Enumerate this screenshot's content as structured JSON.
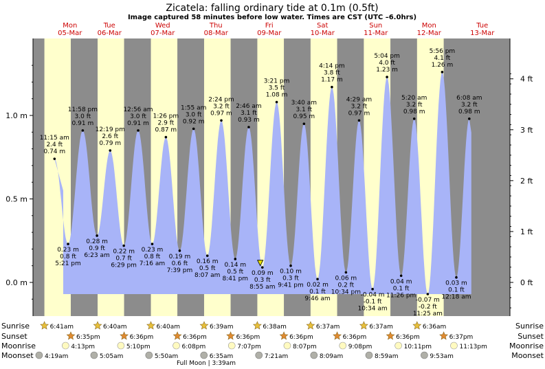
{
  "title": "Zicatela: falling  ordinary tide at 0.1m (0.5ft)",
  "subtitle": "Image captured 58 minutes before low water. Times are CST (UTC –6.0hrs)",
  "colors": {
    "night": "#8c8c8c",
    "day": "#ffffcc",
    "tide_fill": "#a8b4f8",
    "day_label": "#cc0000",
    "sun_star": "#e8c03a",
    "sunset_star": "#e08a30",
    "moonrise": "#fffac0",
    "moonset": "#b0b0a8"
  },
  "days": [
    {
      "dow": "Mon",
      "date": "05-Mar"
    },
    {
      "dow": "Tue",
      "date": "06-Mar"
    },
    {
      "dow": "Wed",
      "date": "07-Mar"
    },
    {
      "dow": "Thu",
      "date": "08-Mar"
    },
    {
      "dow": "Fri",
      "date": "09-Mar"
    },
    {
      "dow": "Sat",
      "date": "10-Mar"
    },
    {
      "dow": "Sun",
      "date": "11-Mar"
    },
    {
      "dow": "Mon",
      "date": "12-Mar"
    },
    {
      "dow": "Tue",
      "date": "13-Mar"
    }
  ],
  "chart_data": {
    "type": "area",
    "title": "Zicatela: falling  ordinary tide at 0.1m (0.5ft)",
    "ylabel_left_unit": "m",
    "ylabel_right_unit": "ft",
    "y_ticks_m": [
      "0.0 m",
      "0.5 m",
      "1.0 m"
    ],
    "y_ticks_ft": [
      "0 ft",
      "1 ft",
      "2 ft",
      "3 ft",
      "4 ft"
    ],
    "ylim_m": [
      -0.12,
      1.3
    ],
    "grid": false,
    "tides": [
      {
        "kind": "high",
        "day": 0,
        "time": "11:15 am",
        "ft": "2.4 ft",
        "m": 0.74,
        "m_label": "0.74 m"
      },
      {
        "kind": "low",
        "day": 0,
        "time": "5:21 pm",
        "ft": "0.8 ft",
        "m": 0.23,
        "m_label": "0.23 m"
      },
      {
        "kind": "high",
        "day": 0,
        "time": "11:58 pm",
        "ft": "3.0 ft",
        "m": 0.91,
        "m_label": "0.91 m"
      },
      {
        "kind": "low",
        "day": 1,
        "time": "6:23 am",
        "ft": "0.9 ft",
        "m": 0.28,
        "m_label": "0.28 m"
      },
      {
        "kind": "high",
        "day": 1,
        "time": "12:19 pm",
        "ft": "2.6 ft",
        "m": 0.79,
        "m_label": "0.79 m"
      },
      {
        "kind": "low",
        "day": 1,
        "time": "6:29 pm",
        "ft": "0.7 ft",
        "m": 0.22,
        "m_label": "0.22 m"
      },
      {
        "kind": "high",
        "day": 2,
        "time": "12:56 am",
        "ft": "3.0 ft",
        "m": 0.91,
        "m_label": "0.91 m"
      },
      {
        "kind": "low",
        "day": 2,
        "time": "7:16 am",
        "ft": "0.8 ft",
        "m": 0.23,
        "m_label": "0.23 m"
      },
      {
        "kind": "high",
        "day": 2,
        "time": "1:26 pm",
        "ft": "2.9 ft",
        "m": 0.87,
        "m_label": "0.87 m"
      },
      {
        "kind": "low",
        "day": 2,
        "time": "7:39 pm",
        "ft": "0.6 ft",
        "m": 0.19,
        "m_label": "0.19 m"
      },
      {
        "kind": "high",
        "day": 3,
        "time": "1:55 am",
        "ft": "3.0 ft",
        "m": 0.92,
        "m_label": "0.92 m"
      },
      {
        "kind": "low",
        "day": 3,
        "time": "8:07 am",
        "ft": "0.5 ft",
        "m": 0.16,
        "m_label": "0.16 m"
      },
      {
        "kind": "high",
        "day": 3,
        "time": "2:24 pm",
        "ft": "3.2 ft",
        "m": 0.97,
        "m_label": "0.97 m"
      },
      {
        "kind": "low",
        "day": 3,
        "time": "8:41 pm",
        "ft": "0.5 ft",
        "m": 0.14,
        "m_label": "0.14 m"
      },
      {
        "kind": "high",
        "day": 4,
        "time": "2:46 am",
        "ft": "3.1 ft",
        "m": 0.93,
        "m_label": "0.93 m"
      },
      {
        "kind": "low",
        "day": 4,
        "time": "8:55 am",
        "ft": "0.3 ft",
        "m": 0.09,
        "m_label": "0.09 m"
      },
      {
        "kind": "high",
        "day": 4,
        "time": "3:21 pm",
        "ft": "3.5 ft",
        "m": 1.08,
        "m_label": "1.08 m"
      },
      {
        "kind": "low",
        "day": 4,
        "time": "9:41 pm",
        "ft": "0.3 ft",
        "m": 0.1,
        "m_label": "0.10 m"
      },
      {
        "kind": "high",
        "day": 5,
        "time": "3:40 am",
        "ft": "3.1 ft",
        "m": 0.95,
        "m_label": "0.95 m"
      },
      {
        "kind": "low",
        "day": 5,
        "time": "9:46 am",
        "ft": "0.1 ft",
        "m": 0.02,
        "m_label": "0.02 m"
      },
      {
        "kind": "high",
        "day": 5,
        "time": "4:14 pm",
        "ft": "3.8 ft",
        "m": 1.17,
        "m_label": "1.17 m"
      },
      {
        "kind": "low",
        "day": 5,
        "time": "10:34 pm",
        "ft": "0.2 ft",
        "m": 0.06,
        "m_label": "0.06 m"
      },
      {
        "kind": "high",
        "day": 6,
        "time": "4:29 am",
        "ft": "3.2 ft",
        "m": 0.97,
        "m_label": "0.97 m"
      },
      {
        "kind": "low",
        "day": 6,
        "time": "10:34 am",
        "ft": "-0.1 ft",
        "m": -0.04,
        "m_label": "-0.04 m"
      },
      {
        "kind": "high",
        "day": 6,
        "time": "5:04 pm",
        "ft": "4.0 ft",
        "m": 1.23,
        "m_label": "1.23 m"
      },
      {
        "kind": "low",
        "day": 6,
        "time": "11:26 pm",
        "ft": "0.1 ft",
        "m": 0.04,
        "m_label": "0.04 m"
      },
      {
        "kind": "high",
        "day": 7,
        "time": "5:20 am",
        "ft": "3.2 ft",
        "m": 0.98,
        "m_label": "0.98 m"
      },
      {
        "kind": "low",
        "day": 7,
        "time": "11:25 am",
        "ft": "-0.2 ft",
        "m": -0.07,
        "m_label": "-0.07 m"
      },
      {
        "kind": "high",
        "day": 7,
        "time": "5:56 pm",
        "ft": "4.1 ft",
        "m": 1.26,
        "m_label": "1.26 m"
      },
      {
        "kind": "low",
        "day": 8,
        "time": "12:18 am",
        "ft": "0.1 ft",
        "m": 0.03,
        "m_label": "0.03 m"
      },
      {
        "kind": "high",
        "day": 8,
        "time": "6:08 am",
        "ft": "3.2 ft",
        "m": 0.98,
        "m_label": "0.98 m"
      }
    ],
    "current_level_m": 0.1
  },
  "astro": {
    "sunrise_label": "Sunrise",
    "sunset_label": "Sunset",
    "moonrise_label": "Moonrise",
    "moonset_label": "Moonset",
    "sunrise": [
      "6:41am",
      "6:40am",
      "6:40am",
      "6:39am",
      "6:38am",
      "6:37am",
      "6:37am",
      "6:36am"
    ],
    "sunset": [
      "6:35pm",
      "6:36pm",
      "6:36pm",
      "6:36pm",
      "6:36pm",
      "6:36pm",
      "6:36pm",
      "6:37pm"
    ],
    "moonrise": [
      "4:13pm",
      "5:10pm",
      "6:08pm",
      "7:07pm",
      "8:07pm",
      "9:08pm",
      "10:11pm",
      "11:13pm"
    ],
    "moonset": [
      "4:19am",
      "5:05am",
      "5:50am",
      "6:35am",
      "7:21am",
      "8:09am",
      "8:59am",
      "9:53am"
    ],
    "full_moon": "Full Moon | 3:39am"
  }
}
